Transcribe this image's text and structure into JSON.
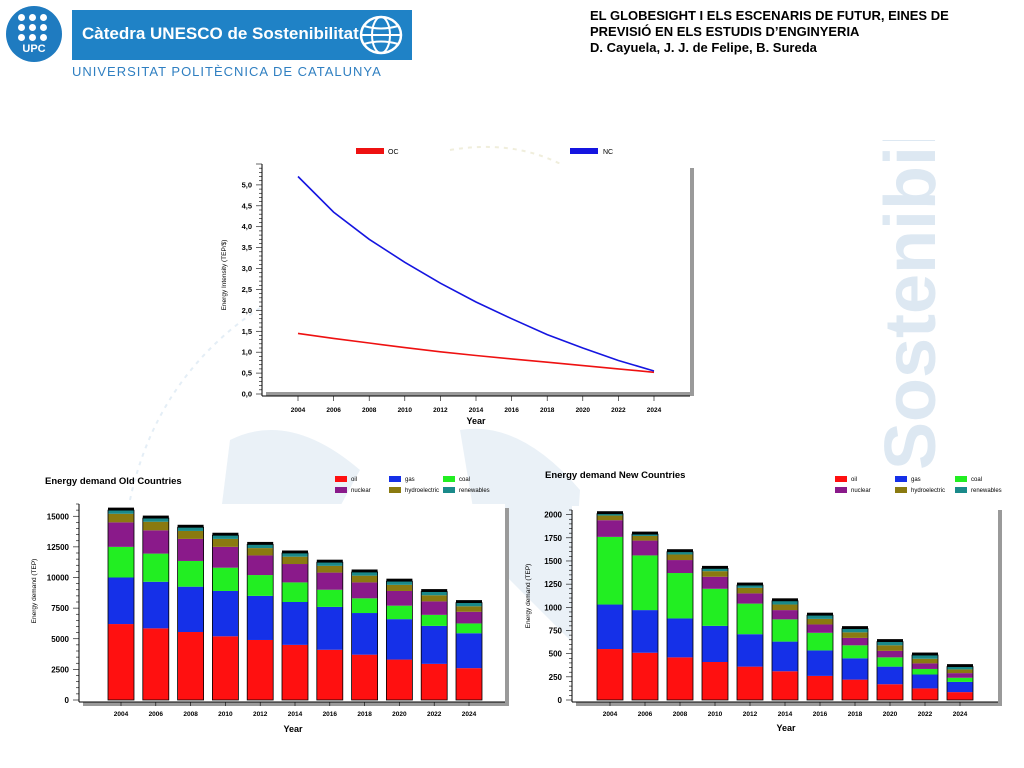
{
  "header": {
    "logo_text": "UPC",
    "banner_text": "Càtedra UNESCO de Sostenibilitat",
    "university": "UNIVERSITAT POLITÈCNICA DE CATALUNYA",
    "watermark": "Sostenibilitat",
    "title_lines": [
      "EL GLOBESIGHT I ELS ESCENARIS DE FUTUR, EINES DE",
      "PREVISIÓ EN ELS ESTUDIS D’ENGINYERIA",
      "D. Cayuela, J. J. de Felipe, B. Sureda"
    ]
  },
  "colors": {
    "oc": "#ee1111",
    "nc": "#1515e0",
    "oil": "#ff1010",
    "gas": "#1530e8",
    "coal": "#22ee22",
    "nuclear": "#8a1a8a",
    "hydroelectric": "#8a7a10",
    "renewables": "#1a8a8a",
    "brand_blue": "#1f82c6"
  },
  "chart_data": [
    {
      "type": "line",
      "title": "",
      "xlabel": "Year",
      "ylabel": "Energy Intensity (TEP/$)",
      "x": [
        2004,
        2006,
        2008,
        2010,
        2012,
        2014,
        2016,
        2018,
        2020,
        2022,
        2024
      ],
      "xticks": [
        "2004",
        "2006",
        "2008",
        "2010",
        "2012",
        "2014",
        "2016",
        "2018",
        "2020",
        "2022",
        "2024"
      ],
      "yticks": [
        "0,0",
        "0,5",
        "1,0",
        "1,5",
        "2,0",
        "2,5",
        "3,0",
        "3,5",
        "4,0",
        "4,5",
        "5,0"
      ],
      "ylim": [
        0,
        5.5
      ],
      "legend_position": "top",
      "series": [
        {
          "name": "OC",
          "color_key": "oc",
          "values": [
            1.45,
            1.33,
            1.22,
            1.11,
            1.01,
            0.92,
            0.84,
            0.76,
            0.68,
            0.6,
            0.52
          ]
        },
        {
          "name": "NC",
          "color_key": "nc",
          "values": [
            5.2,
            4.35,
            3.7,
            3.15,
            2.65,
            2.2,
            1.8,
            1.42,
            1.1,
            0.8,
            0.55
          ]
        }
      ]
    },
    {
      "type": "bar",
      "stacked": true,
      "title": "Energy demand Old Countries",
      "xlabel": "Year",
      "ylabel": "Energy demand (TEP)",
      "categories": [
        "2004",
        "2006",
        "2008",
        "2010",
        "2012",
        "2014",
        "2016",
        "2018",
        "2020",
        "2022",
        "2024"
      ],
      "yticks": [
        "0",
        "2500",
        "5000",
        "7500",
        "10000",
        "12500",
        "15000"
      ],
      "ylim": [
        0,
        16000
      ],
      "legend_position": "top-right",
      "series": [
        {
          "name": "oil",
          "color_key": "oil",
          "values": [
            6200,
            5850,
            5550,
            5200,
            4900,
            4500,
            4100,
            3700,
            3300,
            2950,
            2600
          ]
        },
        {
          "name": "gas",
          "color_key": "gas",
          "values": [
            3800,
            3800,
            3700,
            3700,
            3600,
            3500,
            3500,
            3400,
            3300,
            3100,
            2850
          ]
        },
        {
          "name": "coal",
          "color_key": "coal",
          "values": [
            2500,
            2300,
            2100,
            1900,
            1700,
            1600,
            1400,
            1200,
            1100,
            900,
            800
          ]
        },
        {
          "name": "nuclear",
          "color_key": "nuclear",
          "values": [
            2000,
            1900,
            1800,
            1700,
            1600,
            1500,
            1400,
            1300,
            1200,
            1100,
            950
          ]
        },
        {
          "name": "hydroelectric",
          "color_key": "hydroelectric",
          "values": [
            700,
            700,
            650,
            650,
            600,
            600,
            550,
            550,
            500,
            500,
            450
          ]
        },
        {
          "name": "renewables",
          "color_key": "renewables",
          "values": [
            300,
            300,
            300,
            300,
            300,
            300,
            300,
            300,
            300,
            300,
            300
          ]
        }
      ]
    },
    {
      "type": "bar",
      "stacked": true,
      "title": "Energy demand New Countries",
      "xlabel": "Year",
      "ylabel": "Energy demand (TEP)",
      "categories": [
        "2004",
        "2006",
        "2008",
        "2010",
        "2012",
        "2014",
        "2016",
        "2018",
        "2020",
        "2022",
        "2024"
      ],
      "yticks": [
        "0",
        "250",
        "500",
        "750",
        "1000",
        "1250",
        "1500",
        "1750",
        "2000"
      ],
      "ylim": [
        0,
        2050
      ],
      "legend_position": "top-right",
      "series": [
        {
          "name": "oil",
          "color_key": "oil",
          "values": [
            550,
            510,
            460,
            410,
            360,
            310,
            260,
            220,
            170,
            125,
            85
          ]
        },
        {
          "name": "gas",
          "color_key": "gas",
          "values": [
            480,
            460,
            420,
            390,
            350,
            320,
            275,
            230,
            190,
            150,
            110
          ]
        },
        {
          "name": "coal",
          "color_key": "coal",
          "values": [
            730,
            590,
            490,
            400,
            330,
            240,
            190,
            140,
            100,
            60,
            45
          ]
        },
        {
          "name": "nuclear",
          "color_key": "nuclear",
          "values": [
            180,
            160,
            140,
            130,
            110,
            100,
            90,
            80,
            70,
            60,
            50
          ]
        },
        {
          "name": "hydroelectric",
          "color_key": "hydroelectric",
          "values": [
            50,
            50,
            60,
            60,
            60,
            60,
            60,
            60,
            60,
            50,
            40
          ]
        },
        {
          "name": "renewables",
          "color_key": "renewables",
          "values": [
            20,
            20,
            30,
            30,
            30,
            40,
            40,
            40,
            40,
            40,
            30
          ]
        }
      ]
    }
  ]
}
